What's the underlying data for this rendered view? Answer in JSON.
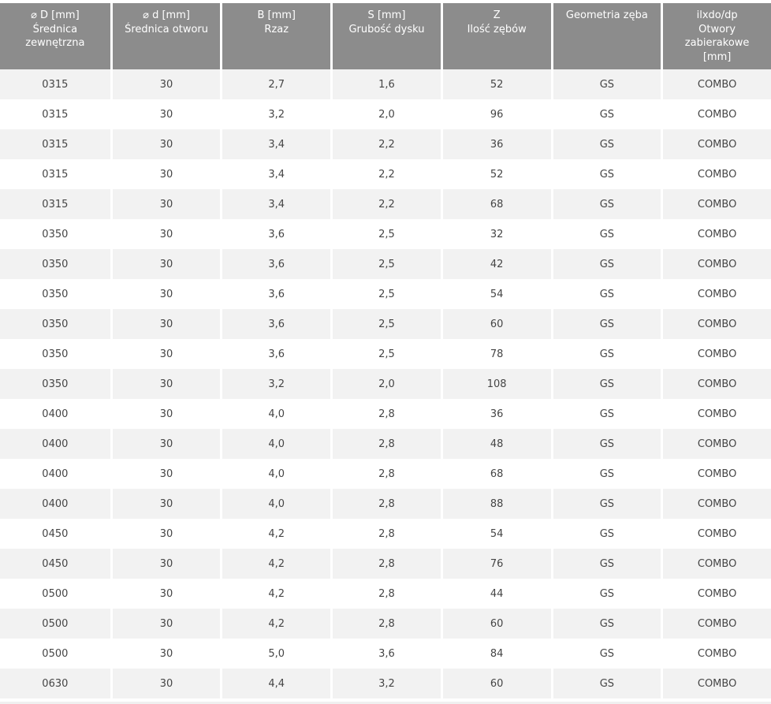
{
  "colors": {
    "header_bg": "#8c8c8c",
    "header_text": "#ffffff",
    "row_odd_bg": "#f2f2f2",
    "row_even_bg": "#ffffff",
    "body_text": "#454545",
    "separator": "#ffffff",
    "bottom_partial_row_bg": "#f0f0f0"
  },
  "table": {
    "columns": [
      {
        "id": "outer-diameter",
        "label": "⌀ D [mm]\nŚrednica\nzewnętrzna"
      },
      {
        "id": "bore-diameter",
        "label": "⌀ d [mm]\nŚrednica otworu"
      },
      {
        "id": "kerf",
        "label": "B [mm]\nRzaz"
      },
      {
        "id": "disc-thickness",
        "label": "S [mm]\nGrubość dysku"
      },
      {
        "id": "teeth-count",
        "label": "Z\nIlość zębów"
      },
      {
        "id": "tooth-geometry",
        "label": "Geometria zęba"
      },
      {
        "id": "pin-holes",
        "label": "ilxdo/dp\nOtwory\nzabierakowe\n[mm]"
      }
    ],
    "rows": [
      [
        "0315",
        "30",
        "2,7",
        "1,6",
        "52",
        "GS",
        "COMBO"
      ],
      [
        "0315",
        "30",
        "3,2",
        "2,0",
        "96",
        "GS",
        "COMBO"
      ],
      [
        "0315",
        "30",
        "3,4",
        "2,2",
        "36",
        "GS",
        "COMBO"
      ],
      [
        "0315",
        "30",
        "3,4",
        "2,2",
        "52",
        "GS",
        "COMBO"
      ],
      [
        "0315",
        "30",
        "3,4",
        "2,2",
        "68",
        "GS",
        "COMBO"
      ],
      [
        "0350",
        "30",
        "3,6",
        "2,5",
        "32",
        "GS",
        "COMBO"
      ],
      [
        "0350",
        "30",
        "3,6",
        "2,5",
        "42",
        "GS",
        "COMBO"
      ],
      [
        "0350",
        "30",
        "3,6",
        "2,5",
        "54",
        "GS",
        "COMBO"
      ],
      [
        "0350",
        "30",
        "3,6",
        "2,5",
        "60",
        "GS",
        "COMBO"
      ],
      [
        "0350",
        "30",
        "3,6",
        "2,5",
        "78",
        "GS",
        "COMBO"
      ],
      [
        "0350",
        "30",
        "3,2",
        "2,0",
        "108",
        "GS",
        "COMBO"
      ],
      [
        "0400",
        "30",
        "4,0",
        "2,8",
        "36",
        "GS",
        "COMBO"
      ],
      [
        "0400",
        "30",
        "4,0",
        "2,8",
        "48",
        "GS",
        "COMBO"
      ],
      [
        "0400",
        "30",
        "4,0",
        "2,8",
        "68",
        "GS",
        "COMBO"
      ],
      [
        "0400",
        "30",
        "4,0",
        "2,8",
        "88",
        "GS",
        "COMBO"
      ],
      [
        "0450",
        "30",
        "4,2",
        "2,8",
        "54",
        "GS",
        "COMBO"
      ],
      [
        "0450",
        "30",
        "4,2",
        "2,8",
        "76",
        "GS",
        "COMBO"
      ],
      [
        "0500",
        "30",
        "4,2",
        "2,8",
        "44",
        "GS",
        "COMBO"
      ],
      [
        "0500",
        "30",
        "4,2",
        "2,8",
        "60",
        "GS",
        "COMBO"
      ],
      [
        "0500",
        "30",
        "5,0",
        "3,6",
        "84",
        "GS",
        "COMBO"
      ],
      [
        "0630",
        "30",
        "4,4",
        "3,2",
        "60",
        "GS",
        "COMBO"
      ]
    ]
  }
}
